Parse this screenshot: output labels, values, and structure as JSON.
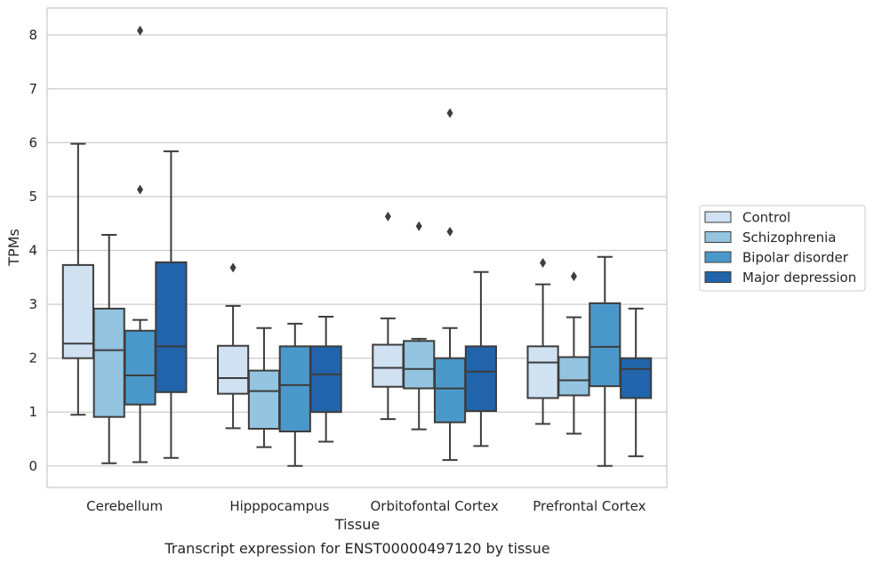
{
  "chart_data": {
    "type": "boxplot",
    "caption": "Transcript expression for ENST00000497120 by tissue",
    "xlabel": "Tissue",
    "ylabel": "TPMs",
    "ylim": [
      -0.4,
      8.5
    ],
    "yticks": [
      0,
      1,
      2,
      3,
      4,
      5,
      6,
      7,
      8
    ],
    "grid": "horizontal",
    "legend_position": "right",
    "categories": [
      "Cerebellum",
      "Hipppocampus",
      "Orbitofontal Cortex",
      "Prefrontal Cortex"
    ],
    "series": [
      {
        "name": "Control",
        "color": "#d0e1f2",
        "boxes": [
          {
            "whisker_low": 0.95,
            "q1": 2.0,
            "median": 2.27,
            "q3": 3.73,
            "whisker_high": 5.98,
            "outliers": []
          },
          {
            "whisker_low": 0.7,
            "q1": 1.34,
            "median": 1.63,
            "q3": 2.23,
            "whisker_high": 2.97,
            "outliers": [
              3.68
            ]
          },
          {
            "whisker_low": 0.87,
            "q1": 1.47,
            "median": 1.82,
            "q3": 2.25,
            "whisker_high": 2.74,
            "outliers": [
              4.63
            ]
          },
          {
            "whisker_low": 0.78,
            "q1": 1.26,
            "median": 1.92,
            "q3": 2.22,
            "whisker_high": 3.37,
            "outliers": [
              3.77
            ]
          }
        ]
      },
      {
        "name": "Schizophrenia",
        "color": "#94c4df",
        "boxes": [
          {
            "whisker_low": 0.05,
            "q1": 0.91,
            "median": 2.15,
            "q3": 2.92,
            "whisker_high": 4.29,
            "outliers": []
          },
          {
            "whisker_low": 0.35,
            "q1": 0.69,
            "median": 1.39,
            "q3": 1.77,
            "whisker_high": 2.56,
            "outliers": []
          },
          {
            "whisker_low": 0.68,
            "q1": 1.44,
            "median": 1.8,
            "q3": 2.32,
            "whisker_high": 2.36,
            "outliers": [
              4.45
            ]
          },
          {
            "whisker_low": 0.6,
            "q1": 1.31,
            "median": 1.59,
            "q3": 2.02,
            "whisker_high": 2.76,
            "outliers": [
              3.52
            ]
          }
        ]
      },
      {
        "name": "Bipolar disorder",
        "color": "#4a98c9",
        "boxes": [
          {
            "whisker_low": 0.07,
            "q1": 1.14,
            "median": 1.68,
            "q3": 2.51,
            "whisker_high": 2.71,
            "outliers": [
              5.13,
              8.08
            ]
          },
          {
            "whisker_low": 0.0,
            "q1": 0.64,
            "median": 1.5,
            "q3": 2.22,
            "whisker_high": 2.64,
            "outliers": []
          },
          {
            "whisker_low": 0.11,
            "q1": 0.81,
            "median": 1.44,
            "q3": 2.0,
            "whisker_high": 2.56,
            "outliers": [
              4.35,
              6.55
            ]
          },
          {
            "whisker_low": 0.0,
            "q1": 1.48,
            "median": 2.21,
            "q3": 3.02,
            "whisker_high": 3.88,
            "outliers": []
          }
        ]
      },
      {
        "name": "Major depression",
        "color": "#2164ab",
        "boxes": [
          {
            "whisker_low": 0.15,
            "q1": 1.37,
            "median": 2.22,
            "q3": 3.78,
            "whisker_high": 5.84,
            "outliers": []
          },
          {
            "whisker_low": 0.45,
            "q1": 1.0,
            "median": 1.7,
            "q3": 2.22,
            "whisker_high": 2.77,
            "outliers": []
          },
          {
            "whisker_low": 0.37,
            "q1": 1.02,
            "median": 1.75,
            "q3": 2.22,
            "whisker_high": 3.6,
            "outliers": []
          },
          {
            "whisker_low": 0.18,
            "q1": 1.26,
            "median": 1.8,
            "q3": 2.0,
            "whisker_high": 2.92,
            "outliers": []
          }
        ]
      }
    ]
  }
}
